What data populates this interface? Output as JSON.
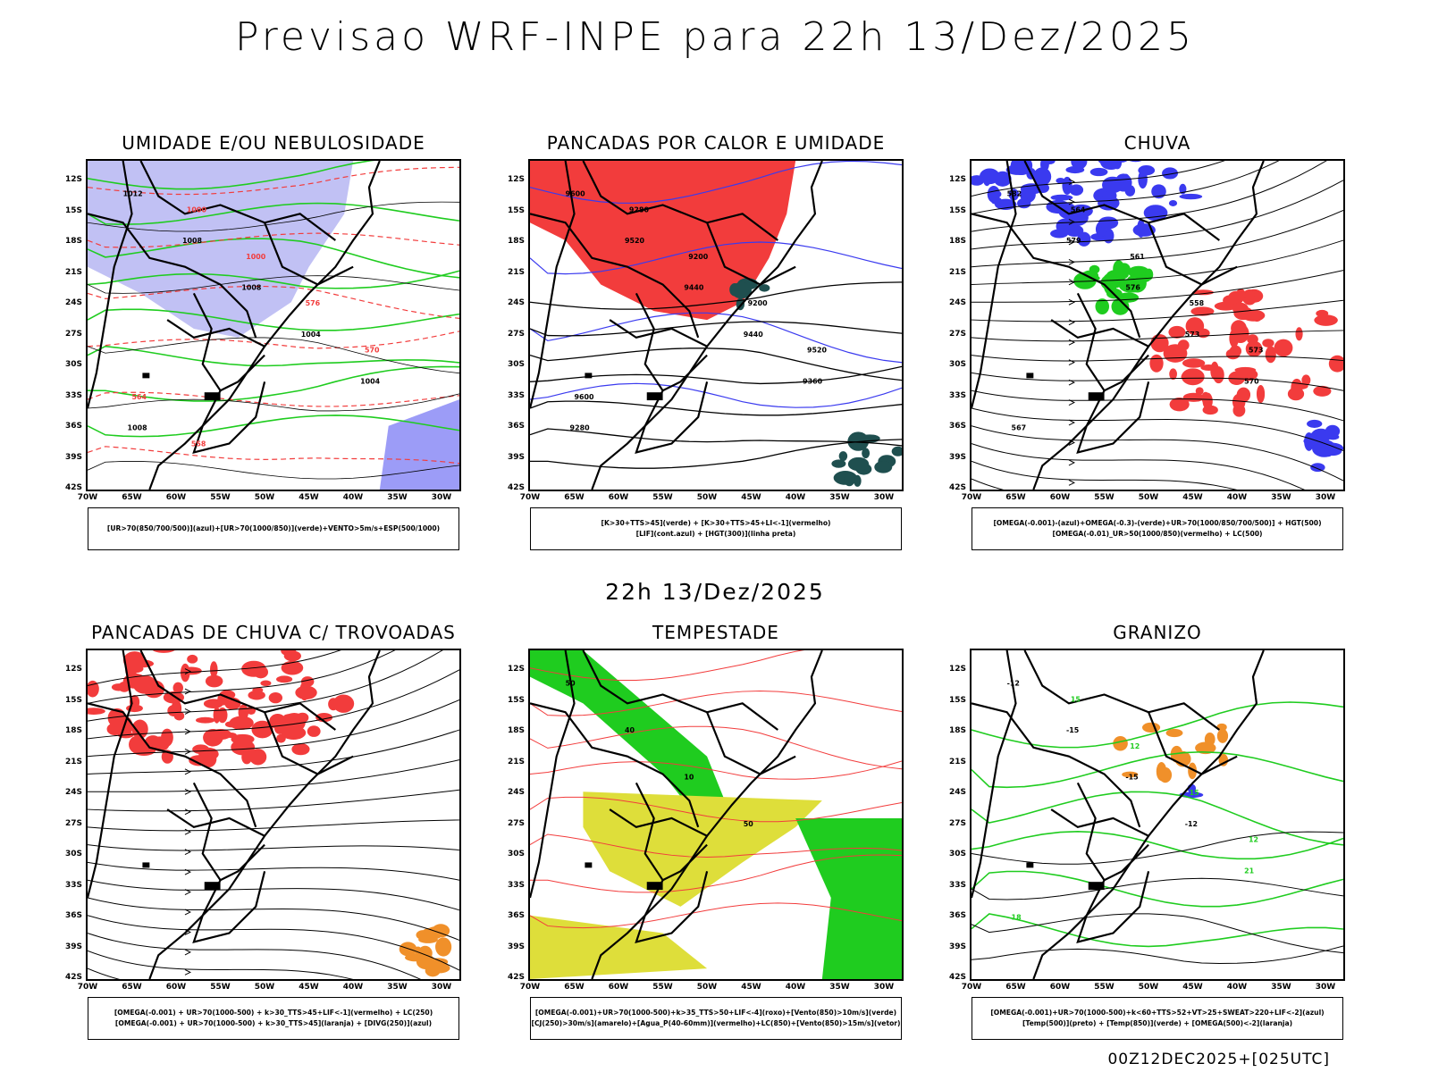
{
  "header": {
    "title": "Previsao WRF-INPE  para 22h 13/Dez/2025"
  },
  "middle_title": "22h 13/Dez/2025",
  "footer_text": "00Z12DEC2025+[025UTC]",
  "axis": {
    "lat_labels": [
      "12S",
      "15S",
      "18S",
      "21S",
      "24S",
      "27S",
      "30S",
      "33S",
      "36S",
      "39S",
      "42S"
    ],
    "lon_labels": [
      "70W",
      "65W",
      "60W",
      "55W",
      "50W",
      "45W",
      "40W",
      "35W",
      "30W"
    ]
  },
  "colors": {
    "blue": "#3a3aef",
    "green": "#1fcc1f",
    "red": "#f23c3c",
    "orange": "#f0902a",
    "yellow": "#dede3a",
    "lavender": "#b6b6f2",
    "darkteal": "#1f4f4f",
    "black": "#000000"
  },
  "panels": [
    {
      "title": "UMIDADE E/OU NEBULOSIDADE",
      "legend": [
        "[UR>70(850/700/500)](azul)+[UR>70(1000/850)](verde)+VENTO>5m/s+ESP(500/1000)"
      ],
      "contour_labels": [
        "1012",
        "1008",
        "1008",
        "1004",
        "1004",
        "1008",
        "1000",
        "1000",
        "576",
        "570",
        "564",
        "558"
      ]
    },
    {
      "title": "PANCADAS POR CALOR E UMIDADE",
      "legend": [
        "[K>30+TTS>45](verde) + [K>30+TTS>45+LI<-1](vermelho)",
        "[LIF](cont.azul) + [HGT(300)](linha preta)"
      ],
      "contour_labels": [
        "9600",
        "9520",
        "9440",
        "9440",
        "9360",
        "9280",
        "9280",
        "9200",
        "9200",
        "9520",
        "9600"
      ]
    },
    {
      "title": "CHUVA",
      "legend": [
        "[OMEGA(-0.001)-(azul)+OMEGA(-0.3)-(verde)+UR>70(1000/850/700/500)] + HGT(500)",
        "[OMEGA(-0.01)_UR>50(1000/850)(vermelho) + LC(500)"
      ],
      "contour_labels": [
        "582",
        "579",
        "576",
        "573",
        "570",
        "567",
        "564",
        "561",
        "558",
        "573"
      ]
    },
    {
      "title": "PANCADAS DE CHUVA C/ TROVOADAS",
      "legend": [
        "[OMEGA(-0.001) + UR>70(1000-500) + k>30_TTS>45+LIF<-1](vermelho) + LC(250)",
        "[OMEGA(-0.001) + UR>70(1000-500) + k>30_TTS>45](laranja) + [DIVG(250)](azul)"
      ],
      "contour_labels": []
    },
    {
      "title": "TEMPESTADE",
      "legend": [
        "[OMEGA(-0.001)+UR>70(1000-500)+k>35_TTS>50+LIF<-4](roxo)+[Vento(850)>10m/s](verde)",
        "[CJ(250)>30m/s](amarelo)+[Agua_P(40-60mm)](vermelho)+LC(850)+[Vento(850)>15m/s](vetor)"
      ],
      "contour_labels": [
        "50",
        "40",
        "10",
        "50"
      ]
    },
    {
      "title": "GRANIZO",
      "legend": [
        "[OMEGA(-0.001)+UR>70(1000-500)+k<60+TTS>52+VT>25+SWEAT>220+LIF<-2](azul)",
        "[Temp(500)](preto) + [Temp(850)](verde) + [OMEGA(500)<-2](laranja)"
      ],
      "contour_labels": [
        "-12",
        "-15",
        "-15",
        "-12",
        "21",
        "18",
        "15",
        "12",
        "15",
        "12"
      ]
    }
  ]
}
